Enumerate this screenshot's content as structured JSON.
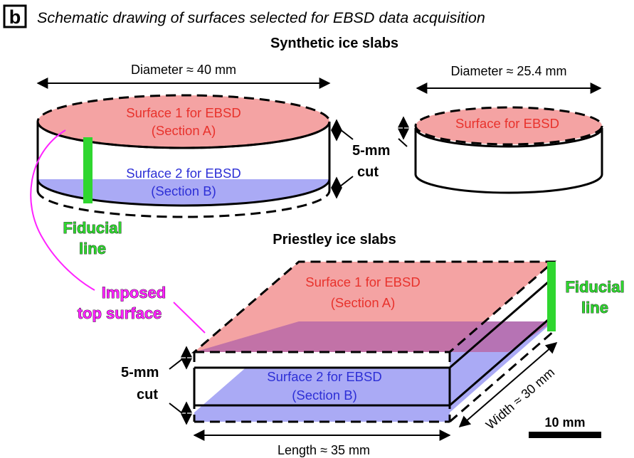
{
  "panel_label": "b",
  "title": "Schematic drawing of surfaces selected for EBSD data acquisition",
  "synthetic": {
    "heading": "Synthetic ice slabs",
    "diameter_large": "Diameter ≈ 40 mm",
    "diameter_small": "Diameter ≈ 25.4 mm",
    "surface1_line1": "Surface 1 for EBSD",
    "surface1_line2": "(Section A)",
    "surface2_line1": "Surface 2 for EBSD",
    "surface2_line2": "(Section B)",
    "surface_small": "Surface for EBSD",
    "cut_line1": "5-mm",
    "cut_line2": "cut",
    "fiducial_line1": "Fiducial",
    "fiducial_line2": "line"
  },
  "priestley": {
    "heading": "Priestley ice slabs",
    "surface1_line1": "Surface 1 for EBSD",
    "surface1_line2": "(Section A)",
    "surface2_line1": "Surface 2 for EBSD",
    "surface2_line2": "(Section B)",
    "imposed_line1": "Imposed",
    "imposed_line2": "top surface",
    "fiducial_line1": "Fiducial",
    "fiducial_line2": "line",
    "cut_line1": "5-mm",
    "cut_line2": "cut",
    "length": "Length ≈ 35 mm",
    "width": "Width ≈ 30 mm",
    "scale": "10 mm"
  },
  "colors": {
    "red_fill": "#f4a3a3",
    "blue_fill": "#aaaaf5",
    "purple_fill": "#b86aa8",
    "green": "#2fd62f",
    "magenta": "#ff22ff"
  }
}
